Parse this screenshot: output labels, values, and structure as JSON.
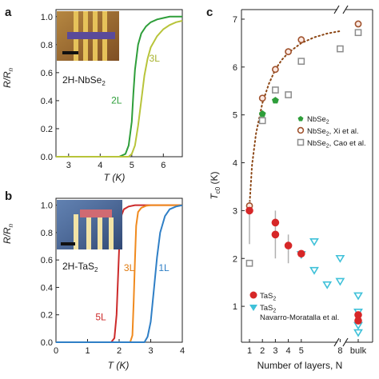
{
  "chart_data": [
    {
      "panel": "a",
      "type": "line",
      "ylabel": "R/R",
      "ylabel_sub": "n",
      "xlabel": "T (K)",
      "xlim": [
        2.6,
        6.6
      ],
      "ylim": [
        0,
        1.05
      ],
      "xticks": [
        3,
        4,
        5,
        6
      ],
      "yticks": [
        0,
        0.2,
        0.4,
        0.6,
        0.8,
        1.0
      ],
      "ytick_labels": [
        "0.0",
        "0.2",
        "0.4",
        "0.6",
        "0.8",
        "1.0"
      ],
      "sample_label": "2H-NbSe",
      "sample_sub": "2",
      "series": [
        {
          "name": "2L",
          "color": "#2e9e3a",
          "x": [
            2.6,
            4.6,
            4.8,
            4.9,
            5.0,
            5.05,
            5.1,
            5.2,
            5.3,
            5.45,
            5.6,
            5.8,
            6.0,
            6.2,
            6.6
          ],
          "y": [
            0,
            0,
            0.02,
            0.08,
            0.25,
            0.45,
            0.62,
            0.8,
            0.88,
            0.93,
            0.96,
            0.98,
            0.99,
            1.0,
            1.0
          ]
        },
        {
          "name": "3L",
          "color": "#b8c43a",
          "x": [
            2.6,
            4.9,
            5.0,
            5.1,
            5.2,
            5.3,
            5.4,
            5.5,
            5.6,
            5.8,
            6.0,
            6.2,
            6.4,
            6.6
          ],
          "y": [
            0,
            0,
            0.02,
            0.08,
            0.22,
            0.4,
            0.58,
            0.7,
            0.78,
            0.86,
            0.91,
            0.94,
            0.96,
            0.97
          ]
        }
      ]
    },
    {
      "panel": "b",
      "type": "line",
      "ylabel": "R/R",
      "ylabel_sub": "n",
      "xlabel": "T (K)",
      "xlim": [
        0,
        4
      ],
      "ylim": [
        0,
        1.05
      ],
      "xticks": [
        0,
        1,
        2,
        3,
        4
      ],
      "yticks": [
        0,
        0.2,
        0.4,
        0.6,
        0.8,
        1.0
      ],
      "ytick_labels": [
        "0.0",
        "0.2",
        "0.4",
        "0.6",
        "0.8",
        "1.0"
      ],
      "sample_label": "2H-TaS",
      "sample_sub": "2",
      "series": [
        {
          "name": "5L",
          "color": "#cc2a2a",
          "x": [
            0,
            1.75,
            1.85,
            1.92,
            1.97,
            2.02,
            2.08,
            2.15,
            2.3,
            2.5,
            4.0
          ],
          "y": [
            0,
            0,
            0.03,
            0.2,
            0.5,
            0.8,
            0.93,
            0.97,
            0.99,
            1.0,
            1.0
          ]
        },
        {
          "name": "3L",
          "color": "#f08a1e",
          "x": [
            0,
            2.35,
            2.42,
            2.46,
            2.5,
            2.54,
            2.6,
            2.7,
            2.85,
            3.0,
            4.0
          ],
          "y": [
            0,
            0,
            0.05,
            0.3,
            0.6,
            0.85,
            0.95,
            0.98,
            0.995,
            1.0,
            1.0
          ]
        },
        {
          "name": "1L",
          "color": "#2f7fc6",
          "x": [
            0,
            2.8,
            2.9,
            3.0,
            3.1,
            3.2,
            3.3,
            3.45,
            3.6,
            3.8,
            4.0
          ],
          "y": [
            0,
            0,
            0.04,
            0.15,
            0.38,
            0.62,
            0.8,
            0.92,
            0.97,
            0.99,
            1.0
          ]
        }
      ]
    },
    {
      "panel": "c",
      "type": "scatter",
      "xlabel": "Number of layers, N",
      "ylabel": "T",
      "ylabel_sub": "c0",
      "ylabel_unit": " (K)",
      "ylim": [
        0.25,
        7.2
      ],
      "yticks": [
        1,
        2,
        3,
        4,
        5,
        6,
        7
      ],
      "xticks": [
        1,
        2,
        3,
        4,
        5,
        8,
        "bulk"
      ],
      "series": [
        {
          "name": "NbSe",
          "name_sub": "2",
          "marker": "pentagon",
          "color": "#2e9e3a",
          "points": [
            [
              2,
              5.02
            ],
            [
              3,
              5.3
            ]
          ]
        },
        {
          "name": "NbSe",
          "name_sub": "2",
          "name_suffix": ", Xi et al.",
          "marker": "circle-open",
          "color": "#a0522d",
          "points": [
            [
              1,
              3.1
            ],
            [
              2,
              5.35
            ],
            [
              3,
              5.95
            ],
            [
              4,
              6.32
            ],
            [
              5,
              6.57
            ],
            [
              "bulk",
              6.9
            ]
          ]
        },
        {
          "name": "NbSe",
          "name_sub": "2",
          "name_suffix": ", Cao et al.",
          "marker": "square-open",
          "color": "#8c8c8c",
          "points": [
            [
              1,
              1.9
            ],
            [
              2,
              4.88
            ],
            [
              3,
              5.52
            ],
            [
              4,
              5.42
            ],
            [
              5,
              6.12
            ],
            [
              8,
              6.38
            ],
            [
              "bulk",
              6.72
            ]
          ]
        },
        {
          "name": "TaS",
          "name_sub": "2",
          "marker": "circle",
          "color": "#d62728",
          "points": [
            [
              1,
              3.0
            ],
            [
              3,
              2.75
            ],
            [
              3,
              2.5
            ],
            [
              4,
              2.27
            ],
            [
              5,
              2.1
            ],
            [
              "bulk",
              0.82
            ],
            [
              "bulk",
              0.7
            ]
          ],
          "errorbars": [
            [
              1,
              2.3,
              3.2
            ],
            [
              3,
              2.0,
              3.0
            ],
            [
              4,
              1.9,
              2.5
            ]
          ]
        },
        {
          "name": "TaS",
          "name_sub": "2",
          "name_line2": "Navarro-Moratalla et al.",
          "marker": "triangle-down",
          "color": "#3fc1d9",
          "points": [
            [
              5,
              2.08
            ],
            [
              6,
              2.35
            ],
            [
              6,
              1.75
            ],
            [
              7,
              1.45
            ],
            [
              8,
              2.0
            ],
            [
              8,
              1.52
            ],
            [
              "bulk",
              1.22
            ],
            [
              "bulk",
              0.88
            ],
            [
              "bulk",
              0.6
            ],
            [
              "bulk",
              0.45
            ]
          ]
        }
      ],
      "fit_curve": {
        "color": "#8b4513",
        "style": "dotted",
        "x": [
          1,
          1.2,
          1.5,
          2,
          2.5,
          3,
          3.5,
          4,
          5,
          6,
          7,
          8
        ],
        "y": [
          3.1,
          3.95,
          4.6,
          5.25,
          5.65,
          5.95,
          6.15,
          6.3,
          6.5,
          6.62,
          6.7,
          6.75
        ]
      }
    }
  ],
  "icons": [
    "device-micrograph-nbse2",
    "device-micrograph-tas2",
    "scale-bar",
    "axis-break-mark"
  ]
}
